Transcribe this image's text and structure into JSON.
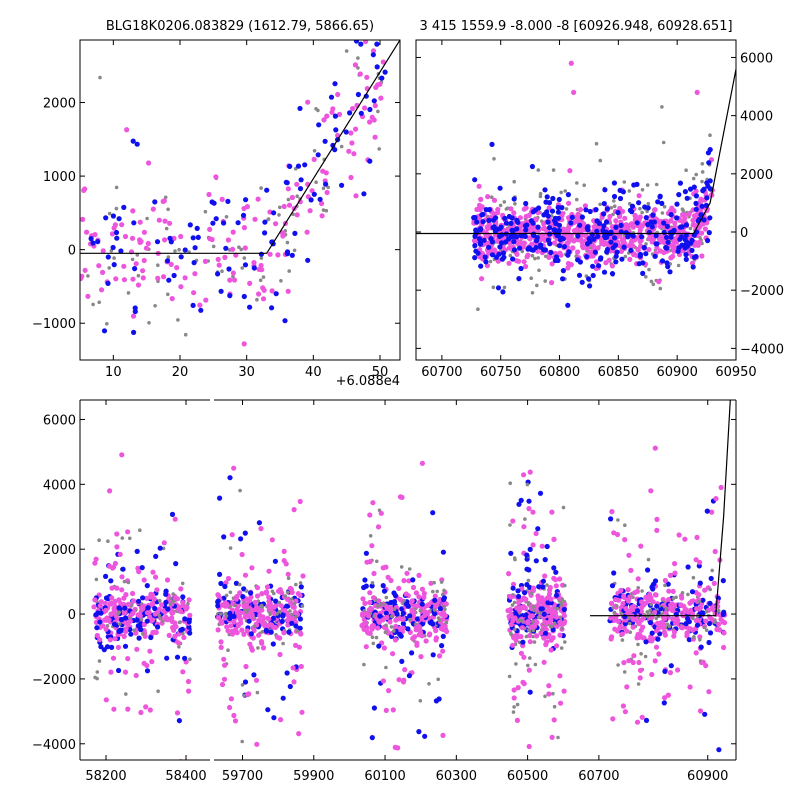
{
  "colors": {
    "gray": "#888888",
    "blue": "#1010ee",
    "magenta": "#ee55dd",
    "line": "#000000"
  },
  "chart_data": [
    {
      "type": "scatter",
      "title": "BLG18K0206.083829 (1612.79, 5866.65)",
      "xlim": [
        60885,
        60933
      ],
      "ylim": [
        -1500,
        2850
      ],
      "xticks": [
        10,
        20,
        30,
        40,
        50
      ],
      "xoffset_label": "+6.088e4",
      "xoffset": 60880,
      "yticks": [
        -1000,
        0,
        1000,
        2000
      ],
      "yaxis_side": "left",
      "model_line": {
        "x": [
          60885,
          60912.5,
          60913,
          60933
        ],
        "y": [
          -50,
          -50,
          -50,
          2850
        ]
      },
      "series": [
        {
          "name": "gray",
          "color": "gray",
          "count": 90,
          "xrange": [
            60885,
            60931
          ],
          "sigma": 550,
          "trend": true
        },
        {
          "name": "magenta",
          "color": "magenta",
          "count": 170,
          "xrange": [
            60885,
            60931
          ],
          "sigma": 450,
          "trend": true
        },
        {
          "name": "blue",
          "color": "blue",
          "count": 110,
          "xrange": [
            60885,
            60931
          ],
          "sigma": 550,
          "trend": true
        }
      ],
      "highlights": [
        {
          "x": 60888,
          "y": 2340,
          "color": "gray"
        },
        {
          "x": 60892,
          "y": 1630,
          "color": "magenta"
        },
        {
          "x": 60918,
          "y": 1920,
          "color": "blue"
        },
        {
          "x": 60925,
          "y": 2700,
          "color": "gray"
        },
        {
          "x": 60929,
          "y": 2650,
          "color": "blue"
        }
      ]
    },
    {
      "type": "scatter",
      "title": "3 415 1559.9 -8.000 -8 [60926.948, 60928.651]",
      "xlim": [
        60678,
        60950
      ],
      "ylim": [
        -4400,
        6600
      ],
      "xticks": [
        60700,
        60750,
        60800,
        60850,
        60900,
        60950
      ],
      "yticks": [
        -4000,
        -2000,
        0,
        2000,
        4000,
        6000
      ],
      "yaxis_side": "right",
      "model_line": {
        "x": [
          60678,
          60914,
          60928,
          60950
        ],
        "y": [
          -50,
          -50,
          1000,
          5600
        ]
      },
      "series": [
        {
          "name": "gray",
          "color": "gray",
          "count": 250,
          "xrange": [
            60727,
            60930
          ],
          "sigma": 1100,
          "trend": true
        },
        {
          "name": "magenta",
          "color": "magenta",
          "count": 700,
          "xrange": [
            60727,
            60930
          ],
          "sigma": 550,
          "trend": true
        },
        {
          "name": "blue",
          "color": "blue",
          "count": 330,
          "xrange": [
            60727,
            60930
          ],
          "sigma": 900,
          "trend": true
        }
      ],
      "highlights": [
        {
          "x": 60810,
          "y": 5800,
          "color": "magenta"
        },
        {
          "x": 60812,
          "y": 4800,
          "color": "magenta"
        },
        {
          "x": 60887,
          "y": 4300,
          "color": "gray"
        },
        {
          "x": 60917,
          "y": 4800,
          "color": "magenta"
        }
      ]
    },
    {
      "type": "scatter",
      "title": "",
      "broken_axis": true,
      "ylim": [
        -4500,
        6600
      ],
      "yticks": [
        -4000,
        -2000,
        0,
        2000,
        4000,
        6000
      ],
      "yaxis_side": "left",
      "segments": [
        {
          "xlim": [
            58135,
            58460
          ],
          "ticks": [
            58200,
            58400
          ],
          "data_range": [
            58170,
            58410
          ],
          "count": 420,
          "model_line": null
        },
        {
          "xlim": [
            59620,
            60720
          ],
          "ticks": [
            59700,
            59900,
            60100,
            60300,
            60500,
            60700
          ],
          "seasons": [
            [
              59630,
              59870
            ],
            [
              60035,
              60275
            ],
            [
              60445,
              60605
            ]
          ],
          "count": 1250,
          "model_line": {
            "x": [
              60675,
              60720
            ],
            "y": [
              -50,
              -50
            ]
          }
        },
        {
          "xlim": [
            60720,
            60950
          ],
          "ticks": [
            60900
          ],
          "data_range": [
            60727,
            60930
          ],
          "count": 500,
          "model_line": {
            "x": [
              60720,
              60914,
              60928,
              60940
            ],
            "y": [
              -50,
              -50,
              3000,
              6600
            ]
          }
        }
      ],
      "series_colors": [
        "gray",
        "blue",
        "magenta"
      ],
      "xtick_labels": [
        "58200",
        "58400",
        "59700",
        "59900",
        "60100",
        "60300",
        "60500",
        "60700",
        "60900"
      ]
    }
  ],
  "labels": {
    "panel1_title": "BLG18K0206.083829 (1612.79, 5866.65)",
    "panel2_title": "3 415 1559.9 -8.000 -8 [60926.948, 60928.651]",
    "panel1_offset": "+6.088e4"
  }
}
